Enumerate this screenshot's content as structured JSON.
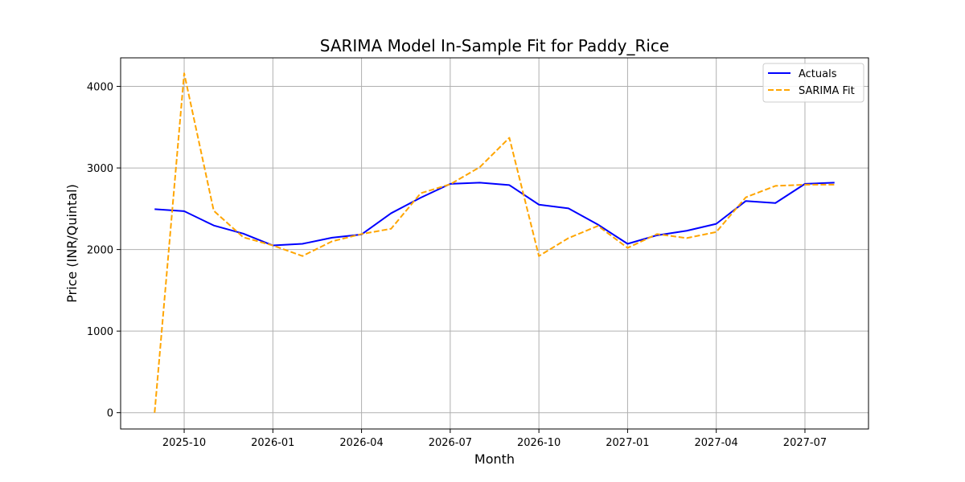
{
  "chart_data": {
    "type": "line",
    "title": "SARIMA Model In-Sample Fit for Paddy_Rice",
    "xlabel": "Month",
    "ylabel": "Price (INR/Quintal)",
    "x": [
      "2025-09",
      "2025-10",
      "2025-11",
      "2025-12",
      "2026-01",
      "2026-02",
      "2026-03",
      "2026-04",
      "2026-05",
      "2026-06",
      "2026-07",
      "2026-08",
      "2026-09",
      "2026-10",
      "2026-11",
      "2026-12",
      "2027-01",
      "2027-02",
      "2027-03",
      "2027-04",
      "2027-05",
      "2027-06",
      "2027-07",
      "2027-08"
    ],
    "x_ticks": [
      "2025-10",
      "2026-01",
      "2026-04",
      "2026-07",
      "2026-10",
      "2027-01",
      "2027-04",
      "2027-07"
    ],
    "y_ticks": [
      0,
      1000,
      2000,
      3000,
      4000
    ],
    "ylim": [
      -200,
      4350
    ],
    "grid": true,
    "legend": "top-right",
    "series": [
      {
        "name": "Actuals",
        "color": "#0000ff",
        "style": "solid",
        "values": [
          2495,
          2470,
          2295,
          2195,
          2050,
          2070,
          2145,
          2185,
          2445,
          2635,
          2805,
          2820,
          2790,
          2550,
          2505,
          2305,
          2070,
          2175,
          2230,
          2315,
          2595,
          2570,
          2805,
          2820
        ]
      },
      {
        "name": "SARIMA Fit",
        "color": "#ffa500",
        "style": "dashed",
        "values": [
          0,
          4160,
          2475,
          2150,
          2050,
          1920,
          2100,
          2190,
          2255,
          2690,
          2800,
          3010,
          3370,
          1920,
          2140,
          2290,
          2020,
          2190,
          2140,
          2215,
          2640,
          2780,
          2795,
          2795
        ]
      }
    ]
  }
}
